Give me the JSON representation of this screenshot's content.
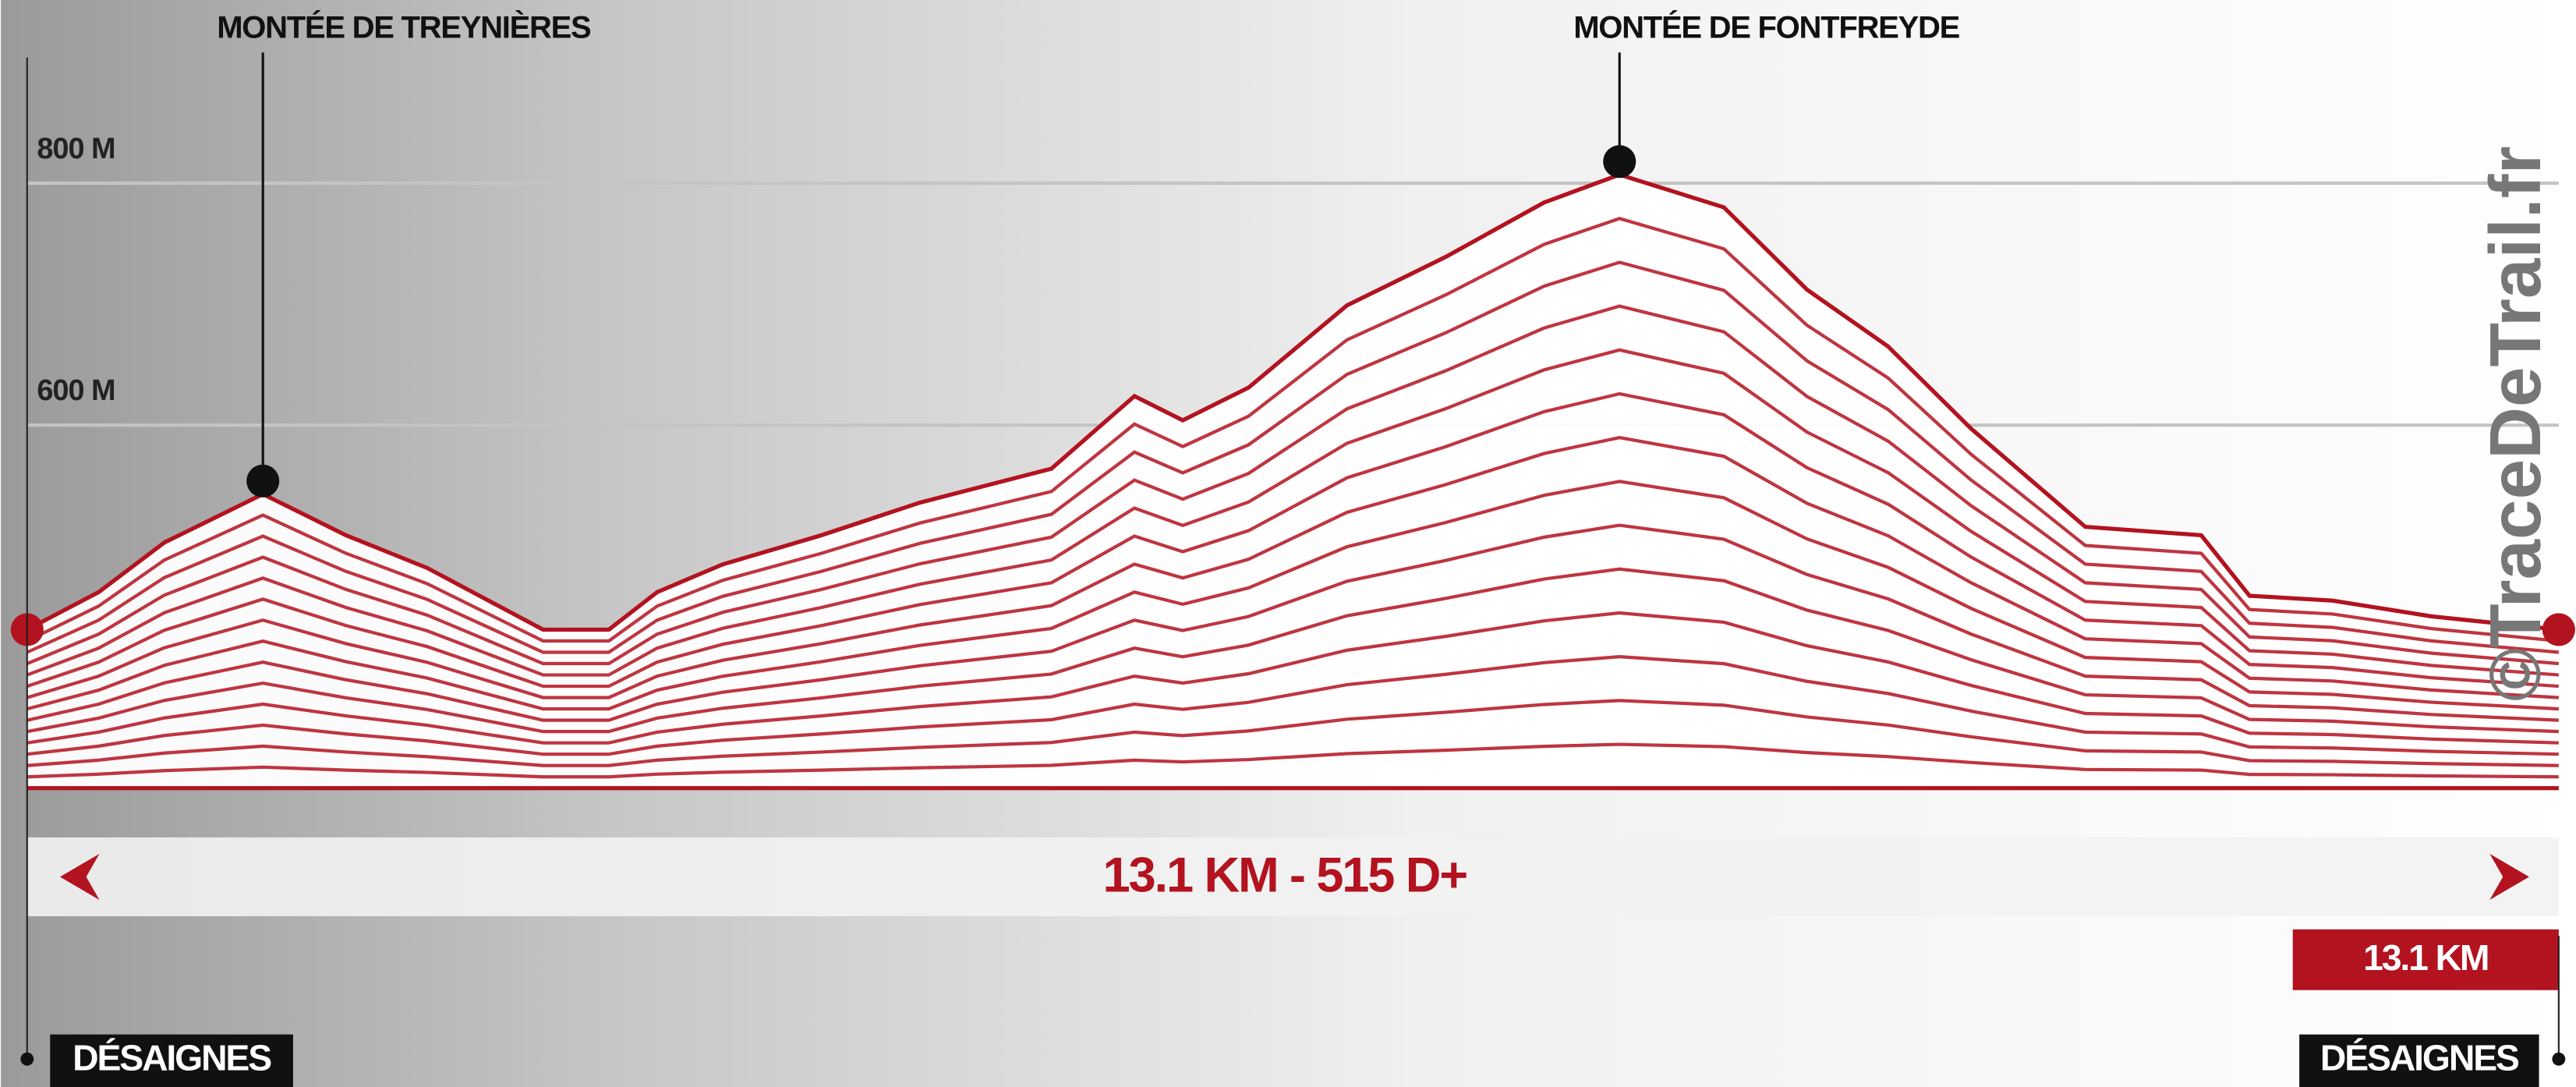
{
  "chart_data": {
    "type": "area",
    "subtitle": "13.1 KM - 515 D+",
    "distance_label": "13.1 KM",
    "start_label": "DÉSAIGNES",
    "end_label": "DÉSAIGNES",
    "watermark": "©TraceDeTrail.fr",
    "color": "#b3121f",
    "x": [
      0,
      0.37,
      0.71,
      1.22,
      1.65,
      2.07,
      2.67,
      3.01,
      3.26,
      3.6,
      4.11,
      4.62,
      5.3,
      5.73,
      5.98,
      6.32,
      6.83,
      7.34,
      7.85,
      8.24,
      8.78,
      9.21,
      9.63,
      10.06,
      10.65,
      11.25,
      11.5,
      11.93,
      12.44,
      13.1
    ],
    "values": [
      431,
      462,
      503,
      543,
      509,
      482,
      431,
      431,
      462,
      485,
      509,
      536,
      564,
      624,
      604,
      631,
      699,
      739,
      784,
      807,
      780,
      712,
      665,
      597,
      516,
      509,
      459,
      455,
      442,
      431
    ],
    "xlim": [
      0,
      13.1
    ],
    "ylim": [
      300,
      950
    ],
    "yticks": [
      {
        "value": 600,
        "label": "600 M"
      },
      {
        "value": 800,
        "label": "800 M"
      }
    ],
    "grid": true,
    "annotations": [
      {
        "label": "MONTÉE DE TREYNIÈRES",
        "x": 1.22,
        "y": 543
      },
      {
        "label": "MONTÉE DE FONTFREYDE",
        "x": 8.24,
        "y": 807
      }
    ]
  }
}
